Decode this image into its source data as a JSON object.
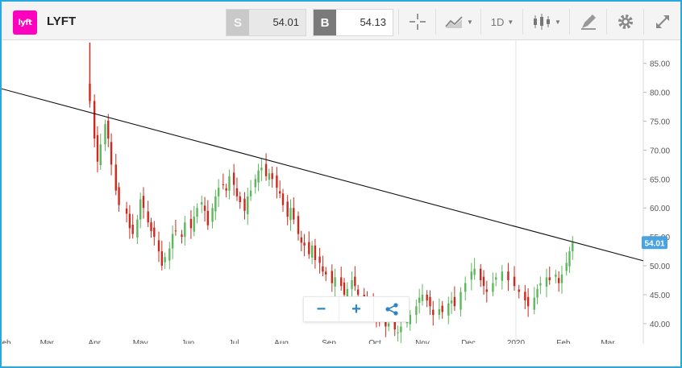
{
  "header": {
    "logo_text": "lyft",
    "symbol": "LYFT",
    "sell": {
      "label": "S",
      "price": "54.01"
    },
    "buy": {
      "label": "B",
      "price": "54.13"
    },
    "timeframe": "1D",
    "tool_icons": [
      "crosshair-icon",
      "chart-type-icon",
      "candlestick-icon",
      "draw-icon",
      "settings-icon",
      "expand-icon"
    ]
  },
  "chart_data": {
    "type": "candlestick",
    "x_ticks": [
      "Feb",
      "Mar",
      "Apr",
      "May",
      "Jun",
      "Jul",
      "Aug",
      "Sep",
      "Oct",
      "Nov",
      "Dec",
      "2020",
      "Feb",
      "Mar"
    ],
    "y_ticks": [
      "40.00",
      "45.00",
      "50.00",
      "55.00",
      "60.00",
      "65.00",
      "70.00",
      "75.00",
      "80.00",
      "85.00"
    ],
    "ylim": [
      36.5,
      89
    ],
    "current_price_label": "54.01",
    "colors": {
      "up": "#5cb85c",
      "down": "#cc2a1e",
      "trendline": "#111111",
      "price_label_bg": "#4aa3df"
    },
    "trendline": {
      "start": {
        "date": "2019-02-01",
        "value": 80.5
      },
      "end": {
        "date": "2020-03-25",
        "value": 50.8
      }
    },
    "daily_closes": [
      [
        "2019-03-29",
        78.5
      ],
      [
        "2019-04-01",
        72.0
      ],
      [
        "2019-04-03",
        68.0
      ],
      [
        "2019-04-05",
        71.0
      ],
      [
        "2019-04-08",
        74.5
      ],
      [
        "2019-04-10",
        72.0
      ],
      [
        "2019-04-12",
        67.5
      ],
      [
        "2019-04-15",
        63.0
      ],
      [
        "2019-04-17",
        60.5
      ],
      [
        "2019-04-22",
        59.0
      ],
      [
        "2019-04-24",
        56.5
      ],
      [
        "2019-04-26",
        55.5
      ],
      [
        "2019-04-29",
        58.0
      ],
      [
        "2019-05-01",
        61.5
      ],
      [
        "2019-05-03",
        60.0
      ],
      [
        "2019-05-06",
        57.5
      ],
      [
        "2019-05-08",
        56.0
      ],
      [
        "2019-05-10",
        55.0
      ],
      [
        "2019-05-13",
        52.5
      ],
      [
        "2019-05-15",
        50.0
      ],
      [
        "2019-05-17",
        51.5
      ],
      [
        "2019-05-20",
        53.0
      ],
      [
        "2019-05-22",
        55.5
      ],
      [
        "2019-05-24",
        56.0
      ],
      [
        "2019-05-28",
        55.0
      ],
      [
        "2019-05-30",
        57.5
      ],
      [
        "2019-06-03",
        56.5
      ],
      [
        "2019-06-05",
        58.5
      ],
      [
        "2019-06-07",
        60.0
      ],
      [
        "2019-06-10",
        61.0
      ],
      [
        "2019-06-12",
        59.5
      ],
      [
        "2019-06-14",
        57.0
      ],
      [
        "2019-06-17",
        60.0
      ],
      [
        "2019-06-19",
        62.0
      ],
      [
        "2019-06-21",
        63.5
      ],
      [
        "2019-06-24",
        64.0
      ],
      [
        "2019-06-26",
        63.0
      ],
      [
        "2019-06-28",
        65.5
      ],
      [
        "2019-07-01",
        64.0
      ],
      [
        "2019-07-03",
        62.0
      ],
      [
        "2019-07-05",
        61.0
      ],
      [
        "2019-07-08",
        59.5
      ],
      [
        "2019-07-10",
        62.0
      ],
      [
        "2019-07-12",
        63.0
      ],
      [
        "2019-07-15",
        65.0
      ],
      [
        "2019-07-17",
        66.5
      ],
      [
        "2019-07-19",
        67.0
      ],
      [
        "2019-07-22",
        65.5
      ],
      [
        "2019-07-24",
        66.0
      ],
      [
        "2019-07-26",
        65.0
      ],
      [
        "2019-07-29",
        63.5
      ],
      [
        "2019-07-31",
        62.5
      ],
      [
        "2019-08-02",
        60.5
      ],
      [
        "2019-08-05",
        58.5
      ],
      [
        "2019-08-07",
        60.0
      ],
      [
        "2019-08-09",
        58.0
      ],
      [
        "2019-08-12",
        55.5
      ],
      [
        "2019-08-14",
        54.0
      ],
      [
        "2019-08-16",
        53.5
      ],
      [
        "2019-08-19",
        52.0
      ],
      [
        "2019-08-21",
        53.5
      ],
      [
        "2019-08-23",
        51.0
      ],
      [
        "2019-08-26",
        50.5
      ],
      [
        "2019-08-28",
        49.0
      ],
      [
        "2019-08-30",
        48.5
      ],
      [
        "2019-09-03",
        47.0
      ],
      [
        "2019-09-05",
        48.0
      ],
      [
        "2019-09-09",
        46.5
      ],
      [
        "2019-09-11",
        45.0
      ],
      [
        "2019-09-13",
        46.0
      ],
      [
        "2019-09-16",
        47.5
      ],
      [
        "2019-09-18",
        46.5
      ],
      [
        "2019-09-20",
        45.0
      ],
      [
        "2019-09-24",
        43.5
      ],
      [
        "2019-09-26",
        44.0
      ],
      [
        "2019-09-30",
        42.0
      ],
      [
        "2019-10-02",
        40.5
      ],
      [
        "2019-10-04",
        41.0
      ],
      [
        "2019-10-08",
        39.5
      ],
      [
        "2019-10-10",
        40.0
      ],
      [
        "2019-10-14",
        39.0
      ],
      [
        "2019-10-16",
        38.5
      ],
      [
        "2019-10-18",
        39.5
      ],
      [
        "2019-10-22",
        40.5
      ],
      [
        "2019-10-24",
        41.5
      ],
      [
        "2019-10-28",
        43.0
      ],
      [
        "2019-10-30",
        44.5
      ],
      [
        "2019-11-01",
        45.0
      ],
      [
        "2019-11-04",
        44.0
      ],
      [
        "2019-11-06",
        43.0
      ],
      [
        "2019-11-08",
        41.5
      ],
      [
        "2019-11-12",
        42.5
      ],
      [
        "2019-11-14",
        42.0
      ],
      [
        "2019-11-18",
        43.5
      ],
      [
        "2019-11-20",
        44.0
      ],
      [
        "2019-11-22",
        43.0
      ],
      [
        "2019-11-26",
        45.5
      ],
      [
        "2019-11-29",
        47.0
      ],
      [
        "2019-12-03",
        49.0
      ],
      [
        "2019-12-05",
        49.5
      ],
      [
        "2019-12-09",
        47.5
      ],
      [
        "2019-12-11",
        46.5
      ],
      [
        "2019-12-13",
        45.5
      ],
      [
        "2019-12-17",
        47.0
      ],
      [
        "2019-12-19",
        48.0
      ],
      [
        "2019-12-23",
        49.0
      ],
      [
        "2019-12-27",
        47.5
      ],
      [
        "2019-12-31",
        46.5
      ],
      [
        "2020-01-03",
        45.5
      ],
      [
        "2020-01-07",
        44.0
      ],
      [
        "2020-01-09",
        43.0
      ],
      [
        "2020-01-13",
        44.5
      ],
      [
        "2020-01-15",
        46.0
      ],
      [
        "2020-01-17",
        47.0
      ],
      [
        "2020-01-21",
        48.0
      ],
      [
        "2020-01-23",
        47.5
      ],
      [
        "2020-01-27",
        48.5
      ],
      [
        "2020-01-29",
        47.0
      ],
      [
        "2020-01-31",
        48.5
      ],
      [
        "2020-02-03",
        50.5
      ],
      [
        "2020-02-05",
        52.5
      ],
      [
        "2020-02-07",
        54.01
      ]
    ]
  }
}
